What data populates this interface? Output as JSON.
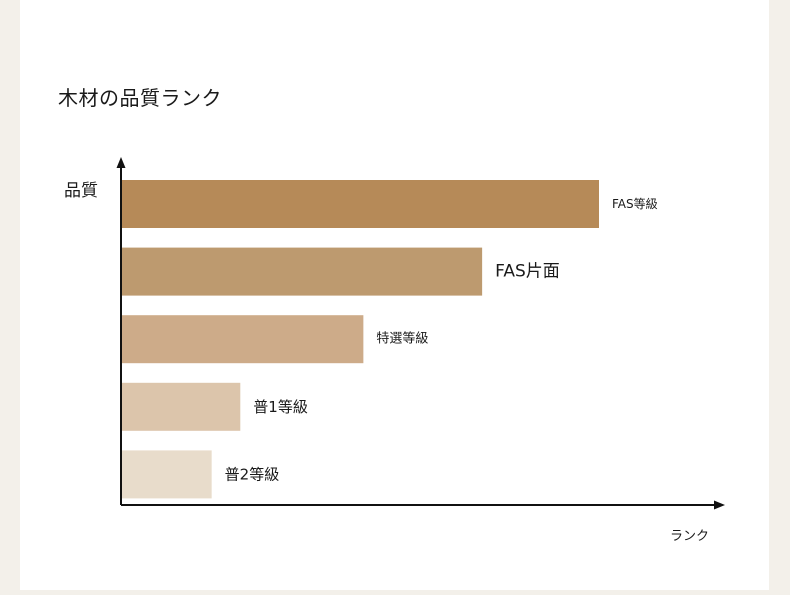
{
  "title": "木材の品質ランク",
  "chart_data": {
    "type": "bar",
    "orientation": "horizontal",
    "title": "木材の品質ランク",
    "ylabel": "品質",
    "xlabel": "ランク",
    "categories": [
      "FAS等級",
      "FAS片面",
      "特選等級",
      "普1等級",
      "普2等級"
    ],
    "values": [
      100,
      75.5,
      50.6,
      24.8,
      18.8
    ],
    "colors": [
      "#b68a58",
      "#bd9a6f",
      "#cdab89",
      "#dcc5ab",
      "#e8dccb"
    ],
    "grid": false,
    "legend": "none"
  }
}
